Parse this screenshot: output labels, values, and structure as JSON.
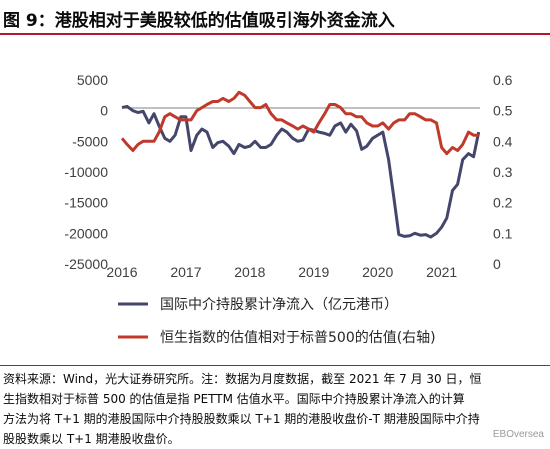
{
  "header": {
    "title": "图 9：港股相对于美股较低的估值吸引海外资金流入"
  },
  "chart_data": {
    "type": "line",
    "x_ticks": [
      "2016",
      "2017",
      "2018",
      "2019",
      "2020",
      "2021"
    ],
    "y_left": {
      "ylim": [
        -25000,
        5000
      ],
      "ticks": [
        "5000",
        "0",
        "-5000",
        "-10000",
        "-15000",
        "-20000",
        "-25000"
      ]
    },
    "y_right": {
      "ylim": [
        0,
        0.6
      ],
      "ticks": [
        "0.6",
        "0.5",
        "0.4",
        "0.3",
        "0.2",
        "0.1",
        "0"
      ]
    },
    "xlim": [
      2016.0,
      2021.6
    ],
    "series": [
      {
        "name": "国际中介持股累计净流入（亿元港币）",
        "axis": "left",
        "color": "#44466b",
        "x": [
          2016.0,
          2016.08,
          2016.17,
          2016.25,
          2016.33,
          2016.42,
          2016.5,
          2016.58,
          2016.67,
          2016.75,
          2016.83,
          2016.92,
          2017.0,
          2017.08,
          2017.17,
          2017.25,
          2017.33,
          2017.42,
          2017.5,
          2017.58,
          2017.67,
          2017.75,
          2017.83,
          2017.92,
          2018.0,
          2018.08,
          2018.17,
          2018.25,
          2018.33,
          2018.42,
          2018.5,
          2018.58,
          2018.67,
          2018.75,
          2018.83,
          2018.92,
          2019.0,
          2019.08,
          2019.17,
          2019.25,
          2019.33,
          2019.42,
          2019.5,
          2019.58,
          2019.67,
          2019.75,
          2019.83,
          2019.92,
          2020.0,
          2020.08,
          2020.17,
          2020.25,
          2020.33,
          2020.42,
          2020.5,
          2020.58,
          2020.67,
          2020.75,
          2020.83,
          2020.92,
          2021.0,
          2021.08,
          2021.17,
          2021.25,
          2021.33,
          2021.42,
          2021.5,
          2021.58
        ],
        "y": [
          500,
          700,
          0,
          -300,
          -100,
          -2000,
          -500,
          -2500,
          -4500,
          -5000,
          -4000,
          -1000,
          -1000,
          -6500,
          -4000,
          -3000,
          -3500,
          -6000,
          -5200,
          -5000,
          -5800,
          -7000,
          -5500,
          -6000,
          -5800,
          -5000,
          -6000,
          -6000,
          -5500,
          -4000,
          -3000,
          -3500,
          -4500,
          -5000,
          -4800,
          -3000,
          -3200,
          -3500,
          -3700,
          -4000,
          -2500,
          -2000,
          -3500,
          -2200,
          -3300,
          -6300,
          -5800,
          -4500,
          -4000,
          -3500,
          -8000,
          -14000,
          -20200,
          -20500,
          -20400,
          -20000,
          -20300,
          -20200,
          -20600,
          -20000,
          -19000,
          -17500,
          -13000,
          -12000,
          -8000,
          -7000,
          -7500,
          -3500
        ]
      },
      {
        "name": "恒生指数的估值相对于标普500的估值(右轴)",
        "axis": "right",
        "color": "#c0392b",
        "x": [
          2016.0,
          2016.08,
          2016.17,
          2016.25,
          2016.33,
          2016.42,
          2016.5,
          2016.58,
          2016.67,
          2016.75,
          2016.83,
          2016.92,
          2017.0,
          2017.08,
          2017.17,
          2017.25,
          2017.33,
          2017.42,
          2017.5,
          2017.58,
          2017.67,
          2017.75,
          2017.83,
          2017.92,
          2018.0,
          2018.08,
          2018.17,
          2018.25,
          2018.33,
          2018.42,
          2018.5,
          2018.58,
          2018.67,
          2018.75,
          2018.83,
          2018.92,
          2019.0,
          2019.08,
          2019.17,
          2019.25,
          2019.33,
          2019.42,
          2019.5,
          2019.58,
          2019.67,
          2019.75,
          2019.83,
          2019.92,
          2020.0,
          2020.08,
          2020.17,
          2020.25,
          2020.33,
          2020.42,
          2020.5,
          2020.58,
          2020.67,
          2020.75,
          2020.83,
          2020.92,
          2021.0,
          2021.08,
          2021.17,
          2021.25,
          2021.33,
          2021.42,
          2021.5,
          2021.58
        ],
        "y": [
          0.41,
          0.39,
          0.37,
          0.39,
          0.4,
          0.4,
          0.4,
          0.43,
          0.48,
          0.49,
          0.48,
          0.47,
          0.47,
          0.47,
          0.5,
          0.51,
          0.52,
          0.53,
          0.53,
          0.54,
          0.53,
          0.54,
          0.56,
          0.55,
          0.53,
          0.51,
          0.51,
          0.52,
          0.49,
          0.47,
          0.47,
          0.46,
          0.45,
          0.44,
          0.45,
          0.44,
          0.43,
          0.46,
          0.49,
          0.52,
          0.52,
          0.51,
          0.49,
          0.49,
          0.48,
          0.48,
          0.46,
          0.45,
          0.45,
          0.46,
          0.44,
          0.46,
          0.47,
          0.47,
          0.49,
          0.49,
          0.48,
          0.47,
          0.47,
          0.46,
          0.38,
          0.36,
          0.38,
          0.37,
          0.39,
          0.43,
          0.42,
          0.42
        ]
      }
    ]
  },
  "source_note": {
    "line1": "资料来源：Wind，光大证券研究所。注：数据为月度数据，截至 2021 年 7 月 30 日，恒",
    "line2": "生指数相对于标普 500 的估值是指 PETTM 估值水平。国际中介持股累计净流入的计算",
    "line3": "方法为将 T+1 期的港股国际中介持股股数乘以 T+1 期的港股收盘价-T 期港股国际中介持",
    "line4": "股股数乘以 T+1 期港股收盘价。"
  },
  "watermark": "EBOversea"
}
